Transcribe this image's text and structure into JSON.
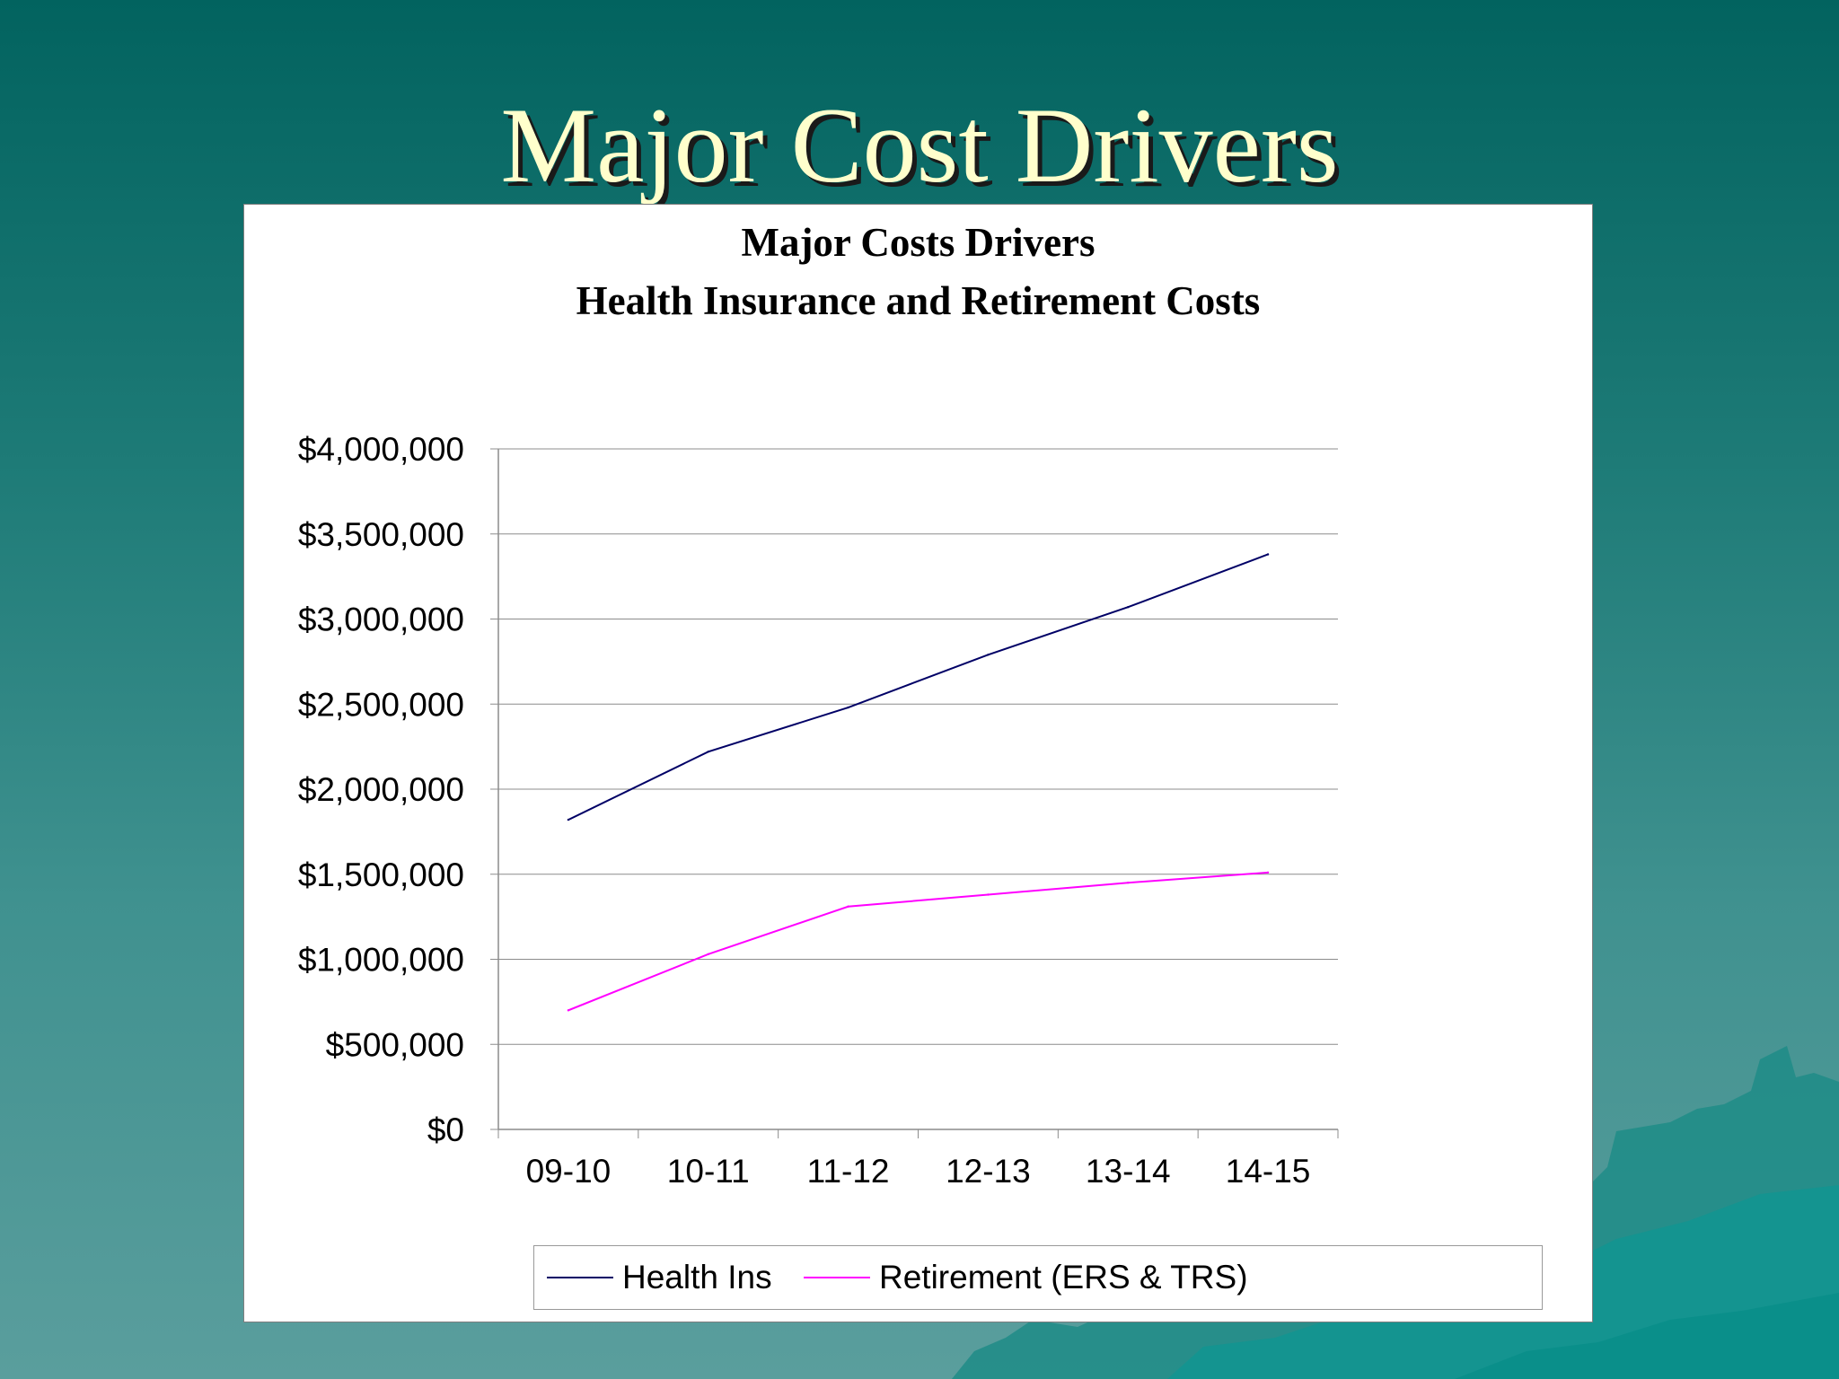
{
  "slide": {
    "title": "Major Cost Drivers"
  },
  "chart_data": {
    "type": "line",
    "title": "Major Costs Drivers",
    "subtitle": "Health Insurance and Retirement Costs",
    "xlabel": "",
    "ylabel": "",
    "categories": [
      "09-10",
      "10-11",
      "11-12",
      "12-13",
      "13-14",
      "14-15"
    ],
    "ylim": [
      0,
      4000000
    ],
    "yticks": [
      "$0",
      "$500,000",
      "$1,000,000",
      "$1,500,000",
      "$2,000,000",
      "$2,500,000",
      "$3,000,000",
      "$3,500,000",
      "$4,000,000"
    ],
    "grid": true,
    "legend_position": "bottom",
    "series": [
      {
        "name": "Health Ins",
        "color": "#000066",
        "values": [
          1820000,
          2220000,
          2480000,
          2790000,
          3070000,
          3380000
        ]
      },
      {
        "name": "Retirement (ERS & TRS)",
        "color": "#ff00ff",
        "values": [
          700000,
          1030000,
          1310000,
          1380000,
          1450000,
          1510000
        ]
      }
    ]
  }
}
